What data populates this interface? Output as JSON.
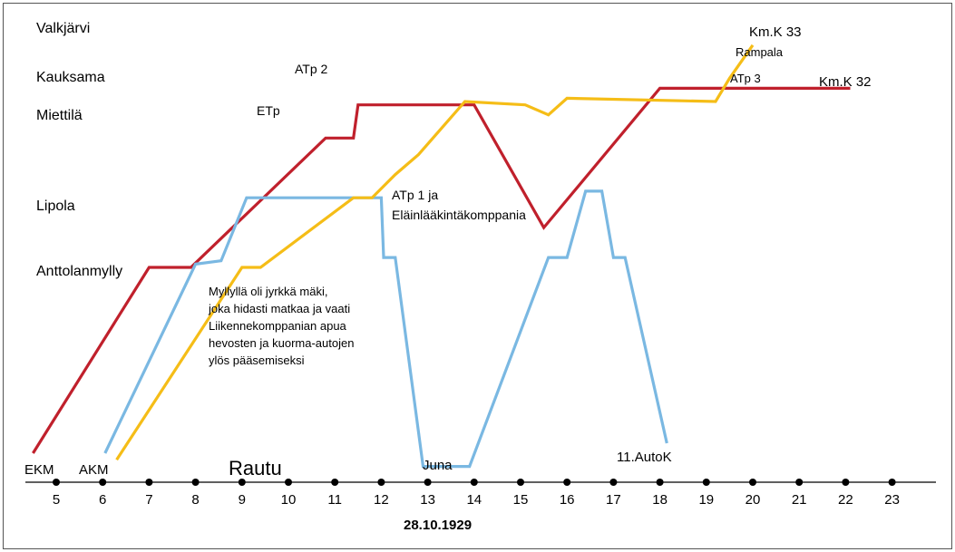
{
  "chart_data": {
    "type": "line",
    "x_axis": {
      "ticks": [
        "5",
        "6",
        "7",
        "8",
        "9",
        "10",
        "11",
        "12",
        "13",
        "14",
        "15",
        "16",
        "17",
        "18",
        "19",
        "20",
        "21",
        "22",
        "23"
      ],
      "date_label": "28.10.1929",
      "town_label": "Rautu"
    },
    "y_places": [
      "Valkjärvi",
      "Kauksama",
      "Miettilä",
      "Lipola",
      "Anttolanmylly"
    ],
    "series": [
      {
        "key": "ekm",
        "color": "#c0202c",
        "points": [
          [
            4.5,
            0
          ],
          [
            7.0,
            5.6
          ],
          [
            7.9,
            5.6
          ],
          [
            10.8,
            9.5
          ],
          [
            11.4,
            9.5
          ],
          [
            11.5,
            10.5
          ],
          [
            14.0,
            10.5
          ],
          [
            15.5,
            6.8
          ],
          [
            18.0,
            11.0
          ],
          [
            22.1,
            11.0
          ]
        ]
      },
      {
        "key": "akm",
        "color": "#7ab8e2",
        "points": [
          [
            6.05,
            0
          ],
          [
            8.0,
            5.7
          ],
          [
            8.55,
            5.8
          ],
          [
            9.1,
            7.7
          ],
          [
            12.0,
            7.7
          ],
          [
            12.05,
            5.9
          ],
          [
            12.3,
            5.9
          ],
          [
            12.9,
            -0.4
          ],
          [
            13.9,
            -0.4
          ],
          [
            15.6,
            5.9
          ],
          [
            16.0,
            5.9
          ],
          [
            16.4,
            7.9
          ],
          [
            16.75,
            7.9
          ],
          [
            17.0,
            5.9
          ],
          [
            17.25,
            5.9
          ],
          [
            18.15,
            0.3
          ]
        ]
      },
      {
        "key": "third",
        "color": "#f5bd17",
        "points": [
          [
            6.3,
            -0.2
          ],
          [
            9.0,
            5.6
          ],
          [
            9.4,
            5.6
          ],
          [
            11.4,
            7.7
          ],
          [
            11.8,
            7.7
          ],
          [
            12.3,
            8.4
          ],
          [
            12.8,
            9.0
          ],
          [
            13.8,
            10.6
          ],
          [
            15.1,
            10.5
          ],
          [
            15.6,
            10.2
          ],
          [
            16.0,
            10.7
          ],
          [
            19.2,
            10.6
          ],
          [
            19.5,
            11.3
          ],
          [
            20.0,
            12.3
          ]
        ]
      }
    ],
    "annotations": [
      {
        "key": "ekm",
        "text": "EKM"
      },
      {
        "key": "akm",
        "text": "AKM"
      },
      {
        "key": "etp",
        "text": "ETp"
      },
      {
        "key": "atp2",
        "text": "ATp 2"
      },
      {
        "key": "atp1",
        "text": "ATp 1 ja"
      },
      {
        "key": "elain",
        "text": "Eläinlääkintäkomppania"
      },
      {
        "key": "juna",
        "text": "Juna"
      },
      {
        "key": "autok",
        "text": "11.AutoK"
      },
      {
        "key": "km33",
        "text": "Km.K 33"
      },
      {
        "key": "rampala",
        "text": "Rampala"
      },
      {
        "key": "atp3",
        "text": "ATp 3"
      },
      {
        "key": "km32",
        "text": "Km.K 32"
      }
    ],
    "note_lines": [
      "Myllyllä  oli jyrkkä mäki,",
      "joka hidasti matkaa ja vaati",
      "Liikennekomppanian apua",
      "hevosten ja kuorma-autojen",
      "ylös pääsemiseksi"
    ]
  }
}
